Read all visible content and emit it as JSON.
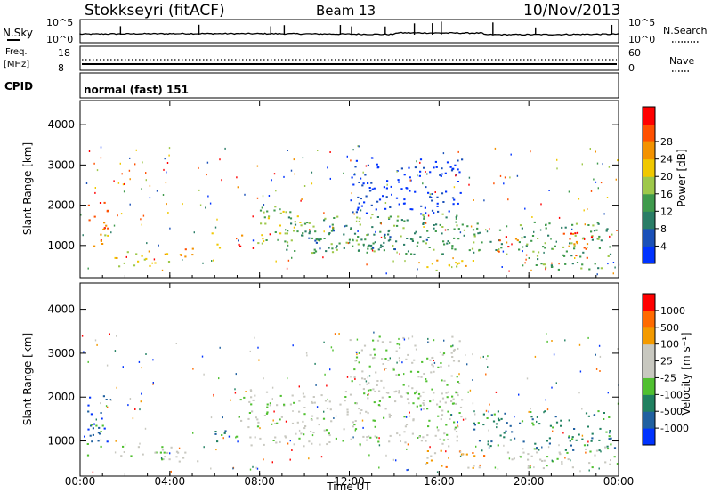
{
  "header": {
    "title": "Stokkseyri (fitACF)",
    "beam": "Beam 13",
    "date": "10/Nov/2013"
  },
  "noise_panel": {
    "left_label": "N.Sky",
    "left_ticks": [
      "10^5",
      "10^0"
    ],
    "right_ticks": [
      "10^5",
      "10^0"
    ],
    "right_label": "N.Search"
  },
  "freq_panel": {
    "left_label_line1": "Freq.",
    "left_label_line2": "[MHz]",
    "left_ticks": [
      "18",
      "8"
    ],
    "right_ticks": [
      "60",
      "0"
    ],
    "right_label": "Nave"
  },
  "cpid_panel": {
    "label": "CPID",
    "text": "normal (fast) 151"
  },
  "x_axis": {
    "label": "Time UT",
    "ticks": [
      "00:00",
      "04:00",
      "08:00",
      "12:00",
      "16:00",
      "20:00",
      "00:00"
    ]
  },
  "colors": {
    "power_scale": [
      "#0033ff",
      "#1a50b8",
      "#2a7d66",
      "#3f9a4c",
      "#9ec84a",
      "#f0c800",
      "#f39200",
      "#ff5000",
      "#ff0000"
    ],
    "velocity_scale": [
      "#0033ff",
      "#2060a0",
      "#208060",
      "#50c030",
      "#c8c8c0",
      "#c8c8c0",
      "#f39a00",
      "#ff6a00",
      "#ff0000"
    ]
  },
  "chart_data": [
    {
      "type": "heatmap",
      "panel": "power",
      "ylabel": "Slant Range [km]",
      "yticks": [
        "1000",
        "2000",
        "3000",
        "4000"
      ],
      "ylim": [
        200,
        4600
      ],
      "xlabel": "",
      "xlim": [
        0,
        24
      ],
      "colorbar_label": "Power [dB]",
      "colorbar_ticks": [
        "4",
        "8",
        "12",
        "16",
        "20",
        "24",
        "28"
      ],
      "features": [
        {
          "t0": 0.3,
          "t1": 1.2,
          "r0": 1000,
          "r1": 2100,
          "level": 7
        },
        {
          "t0": 1.0,
          "t1": 1.3,
          "r0": 1200,
          "r1": 2000,
          "level": 5
        },
        {
          "t0": 1.5,
          "t1": 2.0,
          "r0": 500,
          "r1": 800,
          "level": 5
        },
        {
          "t0": 2.0,
          "t1": 4.0,
          "r0": 500,
          "r1": 900,
          "level": 5
        },
        {
          "t0": 4.0,
          "t1": 5.2,
          "r0": 650,
          "r1": 950,
          "level": 6
        },
        {
          "t0": 5.8,
          "t1": 6.2,
          "r0": 900,
          "r1": 1400,
          "level": 5
        },
        {
          "t0": 7.0,
          "t1": 7.6,
          "r0": 1000,
          "r1": 1300,
          "level": 7
        },
        {
          "t0": 7.6,
          "t1": 8.3,
          "r0": 1000,
          "r1": 1400,
          "level": 4
        },
        {
          "t0": 8.0,
          "t1": 10.0,
          "r0": 1300,
          "r1": 2000,
          "level": 4
        },
        {
          "t0": 9.0,
          "t1": 17.0,
          "r0": 800,
          "r1": 1800,
          "level": 3
        },
        {
          "t0": 10.0,
          "t1": 16.0,
          "r0": 900,
          "r1": 1400,
          "level": 2
        },
        {
          "t0": 12.0,
          "t1": 17.0,
          "r0": 1800,
          "r1": 3200,
          "level": 0
        },
        {
          "t0": 15.0,
          "t1": 17.5,
          "r0": 400,
          "r1": 700,
          "level": 5
        },
        {
          "t0": 17.0,
          "t1": 19.0,
          "r0": 800,
          "r1": 1600,
          "level": 3
        },
        {
          "t0": 18.5,
          "t1": 19.5,
          "r0": 800,
          "r1": 1300,
          "level": 7
        },
        {
          "t0": 19.5,
          "t1": 23.8,
          "r0": 400,
          "r1": 1600,
          "level": 3
        },
        {
          "t0": 21.5,
          "t1": 22.8,
          "r0": 700,
          "r1": 1400,
          "level": 7
        }
      ]
    },
    {
      "type": "heatmap",
      "panel": "velocity",
      "ylabel": "Slant Range [km]",
      "yticks": [
        "1000",
        "2000",
        "3000",
        "4000"
      ],
      "ylim": [
        200,
        4600
      ],
      "xlabel": "Time UT",
      "xlim": [
        0,
        24
      ],
      "colorbar_label": "Velocity [m s⁻¹]",
      "colorbar_ticks": [
        "1000",
        "500",
        "100",
        "25",
        "-25",
        "-100",
        "-500",
        "-1000"
      ],
      "features": [
        {
          "t0": 0.3,
          "t1": 1.2,
          "r0": 1000,
          "r1": 2100,
          "level": 0
        },
        {
          "t0": 0.3,
          "t1": 1.2,
          "r0": 600,
          "r1": 1400,
          "level": 2
        },
        {
          "t0": 1.5,
          "t1": 5.2,
          "r0": 500,
          "r1": 900,
          "level": 4
        },
        {
          "t0": 6.0,
          "t1": 7.0,
          "r0": 1000,
          "r1": 1400,
          "level": 2
        },
        {
          "t0": 7.0,
          "t1": 17.0,
          "r0": 900,
          "r1": 2200,
          "level": 4
        },
        {
          "t0": 12.0,
          "t1": 17.0,
          "r0": 1800,
          "r1": 3400,
          "level": 4
        },
        {
          "t0": 15.0,
          "t1": 18.0,
          "r0": 400,
          "r1": 800,
          "level": 6
        },
        {
          "t0": 17.5,
          "t1": 23.8,
          "r0": 800,
          "r1": 1700,
          "level": 2
        },
        {
          "t0": 19.0,
          "t1": 23.8,
          "r0": 400,
          "r1": 900,
          "level": 4
        }
      ]
    }
  ]
}
